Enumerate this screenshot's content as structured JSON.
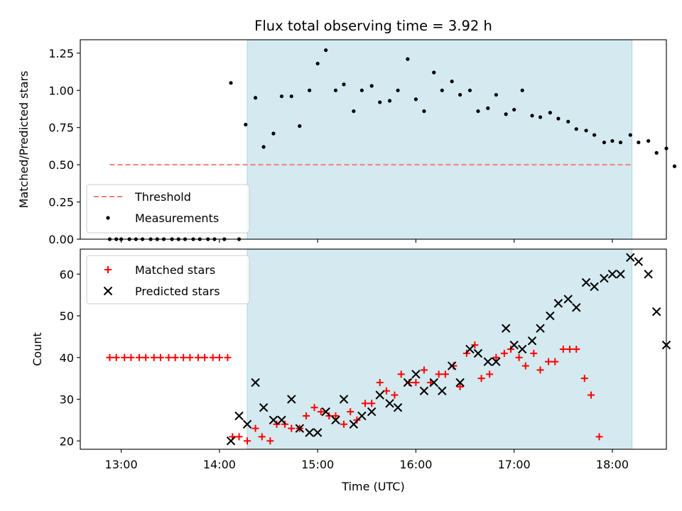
{
  "chart_data": [
    {
      "panel": "top",
      "type": "scatter",
      "title": "Flux total observing time = 3.92 h",
      "ylabel": "Matched/Predicted stars",
      "xlabel": "",
      "ylim": [
        0,
        1.34
      ],
      "yticks": [
        "0.00",
        "0.25",
        "0.50",
        "0.75",
        "1.00",
        "1.25"
      ],
      "ytick_values": [
        0,
        0.25,
        0.5,
        0.75,
        1.0,
        1.25
      ],
      "observing_window": {
        "start": "14:17",
        "end": "18:12",
        "color": "#d4eaf0"
      },
      "threshold": {
        "name": "Threshold",
        "value": 0.5,
        "x_start": "12:53",
        "x_end": "18:12",
        "color": "#f08080",
        "style": "dashed"
      },
      "legend_location": "lower-left",
      "series": [
        {
          "name": "Measurements",
          "color": "#000000",
          "marker": "dot",
          "points": [
            [
              "12:53",
              0
            ],
            [
              "12:57",
              0
            ],
            [
              "13:00",
              0
            ],
            [
              "13:05",
              0
            ],
            [
              "13:09",
              0
            ],
            [
              "13:13",
              0
            ],
            [
              "13:18",
              0
            ],
            [
              "13:22",
              0
            ],
            [
              "13:26",
              0
            ],
            [
              "13:31",
              0
            ],
            [
              "13:35",
              0
            ],
            [
              "13:39",
              0
            ],
            [
              "13:44",
              0
            ],
            [
              "13:48",
              0
            ],
            [
              "13:53",
              0
            ],
            [
              "13:57",
              0
            ],
            [
              "14:03",
              0
            ],
            [
              "14:07",
              1.05
            ],
            [
              "14:12",
              0
            ],
            [
              "14:16",
              0.77
            ],
            [
              "14:22",
              0.95
            ],
            [
              "14:27",
              0.62
            ],
            [
              "14:33",
              0.71
            ],
            [
              "14:38",
              0.96
            ],
            [
              "14:44",
              0.96
            ],
            [
              "14:49",
              0.76
            ],
            [
              "14:55",
              1.0
            ],
            [
              "15:00",
              1.18
            ],
            [
              "15:05",
              1.27
            ],
            [
              "15:11",
              1.0
            ],
            [
              "15:16",
              1.04
            ],
            [
              "15:22",
              0.86
            ],
            [
              "15:27",
              1.0
            ],
            [
              "15:33",
              1.03
            ],
            [
              "15:38",
              0.92
            ],
            [
              "15:44",
              0.93
            ],
            [
              "15:49",
              1.0
            ],
            [
              "15:55",
              1.21
            ],
            [
              "16:00",
              0.94
            ],
            [
              "16:05",
              0.86
            ],
            [
              "16:11",
              1.12
            ],
            [
              "16:16",
              1.0
            ],
            [
              "16:22",
              1.06
            ],
            [
              "16:27",
              0.97
            ],
            [
              "16:33",
              1.0
            ],
            [
              "16:38",
              0.86
            ],
            [
              "16:44",
              0.88
            ],
            [
              "16:49",
              0.97
            ],
            [
              "16:55",
              0.84
            ],
            [
              "17:00",
              0.87
            ],
            [
              "17:05",
              1.0
            ],
            [
              "17:11",
              0.83
            ],
            [
              "17:16",
              0.82
            ],
            [
              "17:22",
              0.85
            ],
            [
              "17:27",
              0.81
            ],
            [
              "17:33",
              0.79
            ],
            [
              "17:38",
              0.74
            ],
            [
              "17:44",
              0.73
            ],
            [
              "17:49",
              0.7
            ],
            [
              "17:55",
              0.65
            ],
            [
              "18:00",
              0.66
            ],
            [
              "18:05",
              0.65
            ],
            [
              "18:11",
              0.7
            ],
            [
              "18:16",
              0.65
            ],
            [
              "18:22",
              0.66
            ],
            [
              "18:27",
              0.58
            ],
            [
              "18:33",
              0.61
            ],
            [
              "18:38",
              0.49
            ]
          ]
        }
      ]
    },
    {
      "panel": "bottom",
      "type": "scatter",
      "title": "",
      "ylabel": "Count",
      "xlabel": "Time (UTC)",
      "xlim": [
        "12:35",
        "18:33"
      ],
      "xticks": [
        "13:00",
        "14:00",
        "15:00",
        "16:00",
        "17:00",
        "18:00"
      ],
      "ylim": [
        18,
        66
      ],
      "yticks": [
        "20",
        "30",
        "40",
        "50",
        "60"
      ],
      "ytick_values": [
        20,
        30,
        40,
        50,
        60
      ],
      "observing_window": {
        "start": "14:17",
        "end": "18:12",
        "color": "#d4eaf0"
      },
      "legend_location": "upper-left",
      "series": [
        {
          "name": "Matched stars",
          "color": "#ff0000",
          "marker": "plus",
          "points": [
            [
              "12:53",
              40
            ],
            [
              "12:57",
              40
            ],
            [
              "13:02",
              40
            ],
            [
              "13:06",
              40
            ],
            [
              "13:11",
              40
            ],
            [
              "13:15",
              40
            ],
            [
              "13:20",
              40
            ],
            [
              "13:24",
              40
            ],
            [
              "13:29",
              40
            ],
            [
              "13:33",
              40
            ],
            [
              "13:38",
              40
            ],
            [
              "13:42",
              40
            ],
            [
              "13:47",
              40
            ],
            [
              "13:51",
              40
            ],
            [
              "13:56",
              40
            ],
            [
              "14:00",
              40
            ],
            [
              "14:05",
              40
            ],
            [
              "14:08",
              21
            ],
            [
              "14:12",
              21
            ],
            [
              "14:17",
              20
            ],
            [
              "14:22",
              23
            ],
            [
              "14:26",
              21
            ],
            [
              "14:31",
              20
            ],
            [
              "14:35",
              24
            ],
            [
              "14:40",
              24
            ],
            [
              "14:44",
              23
            ],
            [
              "14:49",
              23
            ],
            [
              "14:53",
              26
            ],
            [
              "14:58",
              28
            ],
            [
              "15:02",
              27
            ],
            [
              "15:07",
              26
            ],
            [
              "15:11",
              26
            ],
            [
              "15:16",
              24
            ],
            [
              "15:20",
              27
            ],
            [
              "15:24",
              25
            ],
            [
              "15:29",
              29
            ],
            [
              "15:33",
              29
            ],
            [
              "15:38",
              34
            ],
            [
              "15:42",
              32
            ],
            [
              "15:47",
              31
            ],
            [
              "15:51",
              36
            ],
            [
              "15:56",
              34
            ],
            [
              "16:00",
              34
            ],
            [
              "16:05",
              37
            ],
            [
              "16:09",
              34
            ],
            [
              "16:14",
              36
            ],
            [
              "16:18",
              36
            ],
            [
              "16:23",
              38
            ],
            [
              "16:27",
              33
            ],
            [
              "16:31",
              41
            ],
            [
              "16:36",
              43
            ],
            [
              "16:40",
              35
            ],
            [
              "16:45",
              36
            ],
            [
              "16:49",
              40
            ],
            [
              "16:54",
              41
            ],
            [
              "16:58",
              42
            ],
            [
              "17:03",
              40
            ],
            [
              "17:07",
              38
            ],
            [
              "17:12",
              41
            ],
            [
              "17:16",
              37
            ],
            [
              "17:21",
              39
            ],
            [
              "17:25",
              39
            ],
            [
              "17:30",
              42
            ],
            [
              "17:34",
              42
            ],
            [
              "17:38",
              42
            ],
            [
              "17:43",
              35
            ],
            [
              "17:47",
              31
            ],
            [
              "17:52",
              21
            ]
          ]
        },
        {
          "name": "Predicted stars",
          "color": "#000000",
          "marker": "x",
          "points": [
            [
              "14:07",
              20
            ],
            [
              "14:12",
              26
            ],
            [
              "14:17",
              24
            ],
            [
              "14:22",
              34
            ],
            [
              "14:27",
              28
            ],
            [
              "14:33",
              25
            ],
            [
              "14:38",
              25
            ],
            [
              "14:44",
              30
            ],
            [
              "14:49",
              23
            ],
            [
              "14:55",
              22
            ],
            [
              "15:00",
              22
            ],
            [
              "15:05",
              27
            ],
            [
              "15:11",
              25
            ],
            [
              "15:16",
              30
            ],
            [
              "15:22",
              24
            ],
            [
              "15:27",
              26
            ],
            [
              "15:33",
              27
            ],
            [
              "15:38",
              31
            ],
            [
              "15:44",
              29
            ],
            [
              "15:49",
              28
            ],
            [
              "15:55",
              34
            ],
            [
              "16:00",
              36
            ],
            [
              "16:05",
              32
            ],
            [
              "16:11",
              34
            ],
            [
              "16:16",
              32
            ],
            [
              "16:22",
              38
            ],
            [
              "16:27",
              34
            ],
            [
              "16:33",
              42
            ],
            [
              "16:38",
              41
            ],
            [
              "16:44",
              39
            ],
            [
              "16:49",
              39
            ],
            [
              "16:55",
              47
            ],
            [
              "17:00",
              43
            ],
            [
              "17:05",
              42
            ],
            [
              "17:11",
              44
            ],
            [
              "17:16",
              47
            ],
            [
              "17:22",
              50
            ],
            [
              "17:27",
              53
            ],
            [
              "17:33",
              54
            ],
            [
              "17:38",
              52
            ],
            [
              "17:44",
              58
            ],
            [
              "17:49",
              57
            ],
            [
              "17:55",
              59
            ],
            [
              "18:00",
              60
            ],
            [
              "18:05",
              60
            ],
            [
              "18:11",
              64
            ],
            [
              "18:16",
              63
            ],
            [
              "18:22",
              60
            ],
            [
              "18:27",
              51
            ],
            [
              "18:33",
              43
            ]
          ]
        }
      ]
    }
  ]
}
